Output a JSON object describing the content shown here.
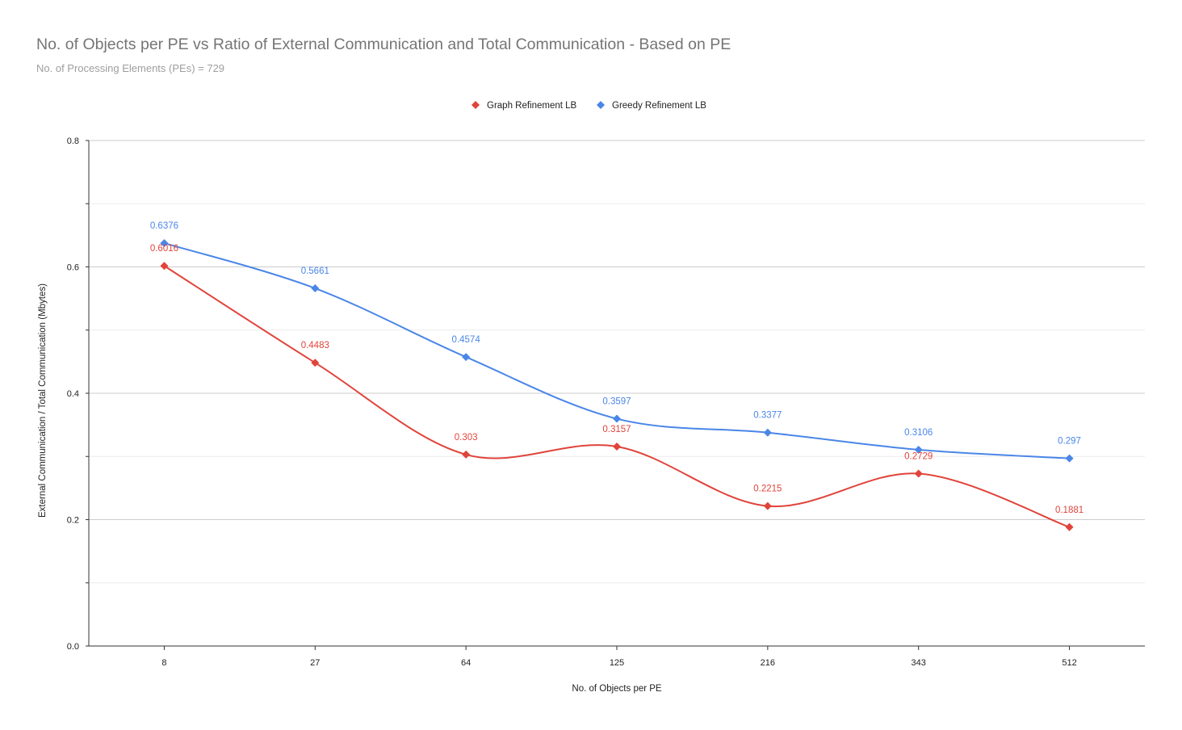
{
  "title": "No. of Objects per PE vs Ratio of External Communication and Total Communication - Based on PE",
  "subtitle": "No. of Processing Elements (PEs) = 729",
  "chart_data": {
    "type": "line",
    "title": "No. of Objects per PE vs Ratio of External Communication and Total Communication - Based on PE",
    "subtitle": "No. of Processing Elements (PEs) = 729",
    "xlabel": "No. of Objects per PE",
    "ylabel": "External Communication / Total Communication (Mbytes)",
    "categories": [
      "8",
      "27",
      "64",
      "125",
      "216",
      "343",
      "512"
    ],
    "ylim": [
      0,
      0.8
    ],
    "yticks": [
      "0.0",
      "0.2",
      "0.4",
      "0.6",
      "0.8"
    ],
    "grid": true,
    "legend_position": "top",
    "series": [
      {
        "name": "Graph Refinement LB",
        "color": "#e0443b",
        "values": [
          0.6016,
          0.4483,
          0.303,
          0.3157,
          0.2215,
          0.2729,
          0.1881
        ],
        "labels": [
          "0.6016",
          "0.4483",
          "0.303",
          "0.3157",
          "0.2215",
          "0.2729",
          "0.1881"
        ]
      },
      {
        "name": "Greedy Refinement LB",
        "color": "#4a86e8",
        "values": [
          0.6376,
          0.5661,
          0.4574,
          0.3597,
          0.3377,
          0.3106,
          0.297
        ],
        "labels": [
          "0.6376",
          "0.5661",
          "0.4574",
          "0.3597",
          "0.3377",
          "0.3106",
          "0.297"
        ]
      }
    ]
  }
}
